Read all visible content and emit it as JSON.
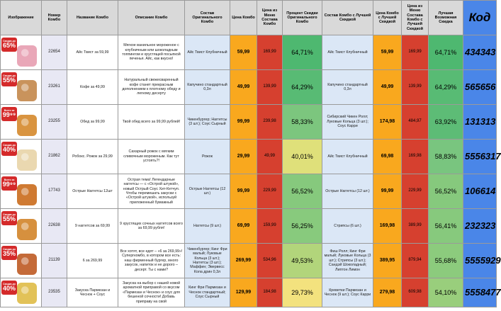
{
  "headers": {
    "image": "Изображение",
    "number": "Номер Комбо",
    "name": "Название Комбо",
    "description": "Описание Комбо",
    "composition": "Состав Оригинального Комбо",
    "price": "Цена Комбо",
    "menu_price": "Цена из Меню Состава Комбо",
    "discount": "Процент Скидки Оригинального Комбо",
    "best_composition": "Состав Комбо с Лучшей Скидкой",
    "best_price": "Цена Комбо с Лучшей Скидкой",
    "best_menu_price": "Цена из Меню Состава Комбо с Лучшей Скидкой",
    "best_discount": "Лучшая Возможная Скидка",
    "code": "Код"
  },
  "rows": [
    {
      "badge_top": "Скидка до",
      "badge_value": "65%",
      "number": "22654",
      "name": "Айс Твист за 59,99",
      "description": "Мягкое ванильное мороженое с клубничным или шоколадным топпингом и хрустящей посыпкой печенья. Айс, как вкусно!",
      "composition": "Айс Твист Клубничный",
      "price": "59,99",
      "menu_price": "169,99",
      "discount": "64,71%",
      "discount_color": "#4eb870",
      "best_composition": "Айс Твист Клубничный",
      "best_price": "59,99",
      "best_menu_price": "169,99",
      "best_discount": "64,71%",
      "best_discount_color": "#4eb870",
      "code": "434343",
      "food_color": "#e9a7b8"
    },
    {
      "badge_top": "Скидка до",
      "badge_value": "55%",
      "number": "23261",
      "name": "Кофе за 49,99",
      "description": "Натуральный свежесваренный кофе станет прекрасным дополнением к плотному обеду и легкому десерту",
      "composition": "Капучино стандартный 0,3л",
      "price": "49,99",
      "menu_price": "139,99",
      "discount": "64,29%",
      "discount_color": "#58bb74",
      "best_composition": "Капучино стандартный 0,3л",
      "best_price": "49,99",
      "best_menu_price": "139,99",
      "best_discount": "64,29%",
      "best_discount_color": "#58bb74",
      "code": "565656",
      "food_color": "#c9935c"
    },
    {
      "badge_top": "Всего за",
      "badge_value": "99⁹⁹",
      "number": "23255",
      "name": "Обед за 99,99",
      "description": "Твой обед всего за 99,99 рублей!",
      "composition": "Чикенбургер; Наггетсы (3 шт.); Соус Сырный",
      "price": "99,99",
      "menu_price": "239,98",
      "discount": "58,33%",
      "discount_color": "#7cc67e",
      "best_composition": "Сибирский Чикен Ролл; Луковые Кольца (3 шт.); Соус Карри",
      "best_price": "174,98",
      "best_menu_price": "484,97",
      "best_discount": "63,92%",
      "best_discount_color": "#5dbc76",
      "code": "131313",
      "food_color": "#d99440"
    },
    {
      "badge_top": "Скидка до",
      "badge_value": "40%",
      "number": "21862",
      "name": "Робокс. Рожок за 29,99",
      "description": "Сахарный рожок с мягким сливочным мороженым. Как тут устоять?!",
      "composition": "Рожок",
      "price": "29,99",
      "menu_price": "49,99",
      "discount": "40,01%",
      "discount_color": "#dfe07a",
      "best_composition": "Айс Твист Клубничный",
      "best_price": "69,98",
      "best_menu_price": "169,98",
      "best_discount": "58,83%",
      "best_discount_color": "#79c57f",
      "code": "5556317",
      "food_color": "#ead8b0"
    },
    {
      "badge_top": "Всего за",
      "badge_value": "99⁹⁹",
      "number": "17743",
      "name": "Острые Наггетсы 12шт",
      "description": "Острая тема! Легендарные наггетсы — с «Острой штукой», новый Острый Соус Хит-Кетчуп. Чтобы перемешать закуски с «Острой штукой», используй приложенный бумажный",
      "composition": "Острые Наггетсы (12 шт.)",
      "price": "99,99",
      "menu_price": "229,99",
      "discount": "56,52%",
      "discount_color": "#86c97d",
      "best_composition": "Острые Наггетсы (12 шт.)",
      "best_price": "99,99",
      "best_menu_price": "229,99",
      "best_discount": "56,52%",
      "best_discount_color": "#86c97d",
      "code": "106614",
      "food_color": "#cf7a32"
    },
    {
      "badge_top": "Скидка до",
      "badge_value": "55%",
      "number": "22638",
      "name": "9 наггетсов за 69,99",
      "description": "9 хрустящих сочных наггетсов всего за 69,99 рубля!",
      "composition": "Наггетсы (9 шт.)",
      "price": "69,99",
      "menu_price": "159,99",
      "discount": "56,25%",
      "discount_color": "#88ca7d",
      "best_composition": "Стрипсы (6 шт.)",
      "best_price": "169,98",
      "best_menu_price": "389,99",
      "best_discount": "56,41%",
      "best_discount_color": "#87c97d",
      "code": "232323",
      "food_color": "#d6903e"
    },
    {
      "badge_top": "Скидка до",
      "badge_value": "35%",
      "number": "21139",
      "name": "6 за 269,99",
      "description": "Все хотят, все едят – «6 за 269,99»! Супергкомбо, в котором все есть: наш фирменный бургер, много закусок, напиток и не дорого – десерт. Ты с нами?",
      "composition": "Чикенбургер; Кинг Фри малый; Луковые Кольца (3 шт.); Наггетсы (3 шт.); Маффин; Эвервесс Кола дрин 0,3л",
      "price": "269,99",
      "menu_price": "534,96",
      "discount": "49,53%",
      "discount_color": "#b2d57b",
      "best_composition": "Фиш Ролл; Кинг Фри малый; Луковые Кольца (3 шт.); Стрипсы (3 шт.); Сандэй Шоколадный; Липтон Лимон",
      "best_price": "389,95",
      "best_menu_price": "879,94",
      "best_discount": "55,68%",
      "best_discount_color": "#8ccb7d",
      "code": "5555929",
      "food_color": "#c46a38"
    },
    {
      "badge_top": "Скидка до",
      "badge_value": "40%",
      "number": "23535",
      "name": "Закуска Пармезан и Чеснок + Соус",
      "description": "Закуска на выбор с нашей новой ароматной приправой со вкусом «Пармезан и Чеснок» и соус для бешеной сочности! Добавь приправу на свой",
      "composition": "Кинг Фри Пармезан и Чеснок стандартный; Соус Сырный",
      "price": "129,99",
      "menu_price": "184,98",
      "discount": "29,73%",
      "discount_color": "#f3e27e",
      "best_composition": "Креветки Пармезан и Чеснок (9 шт.); Соус Карри",
      "best_price": "279,98",
      "best_menu_price": "609,98",
      "best_discount": "54,10%",
      "best_discount_color": "#99ce7c",
      "code": "5558477",
      "food_color": "#e2c258"
    }
  ]
}
